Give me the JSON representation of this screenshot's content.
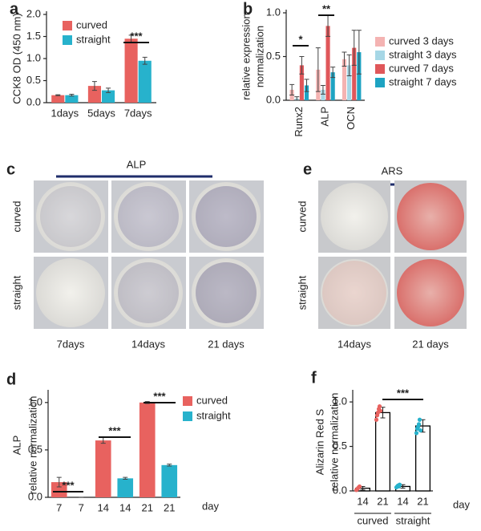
{
  "chart_data": [
    {
      "type": "bar",
      "ylabel": [
        "CCK8 OD (450 nm)"
      ],
      "categories": [
        "1days",
        "5days",
        "7days"
      ],
      "series": [
        {
          "name": "curved",
          "color": "#e8625f",
          "values": [
            0.17,
            0.38,
            1.45
          ],
          "errors": [
            0.01,
            0.1,
            0.08
          ]
        },
        {
          "name": "straight",
          "color": "#27b2cc",
          "values": [
            0.17,
            0.28,
            0.95
          ],
          "errors": [
            0.02,
            0.05,
            0.08
          ]
        }
      ],
      "ylim": [
        0,
        2
      ],
      "yticks": [
        {
          "value": 0,
          "label": "0.0"
        },
        {
          "value": 0.5,
          "label": "0.5"
        },
        {
          "value": 1,
          "label": "1.0"
        },
        {
          "value": 1.5,
          "label": "1.5"
        },
        {
          "value": 2,
          "label": "2.0"
        }
      ],
      "legend": "upper left",
      "annotations": [
        "***"
      ]
    },
    {
      "type": "bar",
      "ylabel": [
        "relative expression",
        "normalization"
      ],
      "categories": [
        "Runx2",
        "ALP",
        "OCN"
      ],
      "series": [
        {
          "name": "curved 3 days",
          "color": "#f4b3b2",
          "values": [
            0.12,
            0.35,
            0.47
          ],
          "errors": [
            0.06,
            0.25,
            0.08
          ]
        },
        {
          "name": "straight 3 days",
          "color": "#a6d7e6",
          "values": [
            0.02,
            0.12,
            0.4
          ],
          "errors": [
            0.02,
            0.05,
            0.12
          ]
        },
        {
          "name": "curved 7 days",
          "color": "#e0575a",
          "values": [
            0.4,
            0.85,
            0.6
          ],
          "errors": [
            0.1,
            0.12,
            0.2
          ]
        },
        {
          "name": "straight 7 days",
          "color": "#1ea3c2",
          "values": [
            0.17,
            0.32,
            0.55
          ],
          "errors": [
            0.07,
            0.06,
            0.25
          ]
        }
      ],
      "ylim": [
        0,
        1
      ],
      "yticks": [
        {
          "value": 0,
          "label": "0.0"
        },
        {
          "value": 0.5,
          "label": "0.5"
        },
        {
          "value": 1,
          "label": "1.0"
        }
      ],
      "legend": "right",
      "annotations": [
        "*",
        "**"
      ]
    },
    {
      "type": "bar",
      "ylabel": [
        "ALP",
        "relative normalization"
      ],
      "xlabel": "day",
      "categories": [
        "7",
        "7",
        "14",
        "14",
        "21",
        "21"
      ],
      "series": [
        {
          "name": "curved",
          "color": "#e8625f",
          "values": [
            0.16,
            null,
            0.6,
            null,
            1.0,
            null
          ],
          "errors": [
            0.05,
            null,
            0.03,
            null,
            0.01,
            null
          ]
        },
        {
          "name": "straight",
          "color": "#27b2cc",
          "values": [
            null,
            0,
            null,
            0.2,
            null,
            0.34
          ],
          "errors": [
            null,
            0,
            null,
            0.01,
            null,
            0.01
          ]
        }
      ],
      "ylim": [
        0,
        1.1
      ],
      "yticks": [
        {
          "value": 0,
          "label": "0.0"
        },
        {
          "value": 0.5,
          "label": "0.5"
        },
        {
          "value": 1,
          "label": "1.0"
        }
      ],
      "legend": "right",
      "annotations": [
        "***",
        "***",
        "***"
      ]
    },
    {
      "type": "bar",
      "ylabel": [
        "Alizarin Red S",
        "relative normalization"
      ],
      "xlabel": "day",
      "categories": [
        "14",
        "21",
        "14",
        "21"
      ],
      "groups": [
        "curved",
        "straight"
      ],
      "series": [
        {
          "name": null,
          "color": "#ffffff",
          "edgecolor": "#000000",
          "values": [
            0.03,
            0.88,
            0.05,
            0.73
          ],
          "errors": [
            0.02,
            0.06,
            0.02,
            0.07
          ]
        }
      ],
      "points": [
        [
          0.01,
          0.02,
          0.03,
          0.04,
          0.05
        ],
        [
          0.8,
          0.85,
          0.88,
          0.92,
          0.95,
          0.9
        ],
        [
          0.04,
          0.05,
          0.06,
          0.05,
          0.07
        ],
        [
          0.65,
          0.7,
          0.72,
          0.75,
          0.8,
          0.68
        ]
      ],
      "point_colors": [
        "#e8625f",
        "#e8625f",
        "#27b2cc",
        "#27b2cc"
      ],
      "ylim": [
        0,
        1.1
      ],
      "yticks": [
        {
          "value": 0,
          "label": "0.0"
        },
        {
          "value": 0.5,
          "label": "0.5"
        },
        {
          "value": 1,
          "label": "1.0"
        }
      ],
      "annotations": [
        "***"
      ]
    }
  ],
  "panels": {
    "letters": [
      "a",
      "b",
      "c",
      "d",
      "e",
      "f"
    ],
    "c": {
      "header": "ALP",
      "rows": [
        "curved",
        "straight"
      ],
      "columns": [
        "7days",
        "14days",
        "21 days"
      ]
    },
    "e": {
      "header": "ARS",
      "rows": [
        "curved",
        "straight"
      ],
      "columns": [
        "14days",
        "21 days"
      ]
    }
  }
}
